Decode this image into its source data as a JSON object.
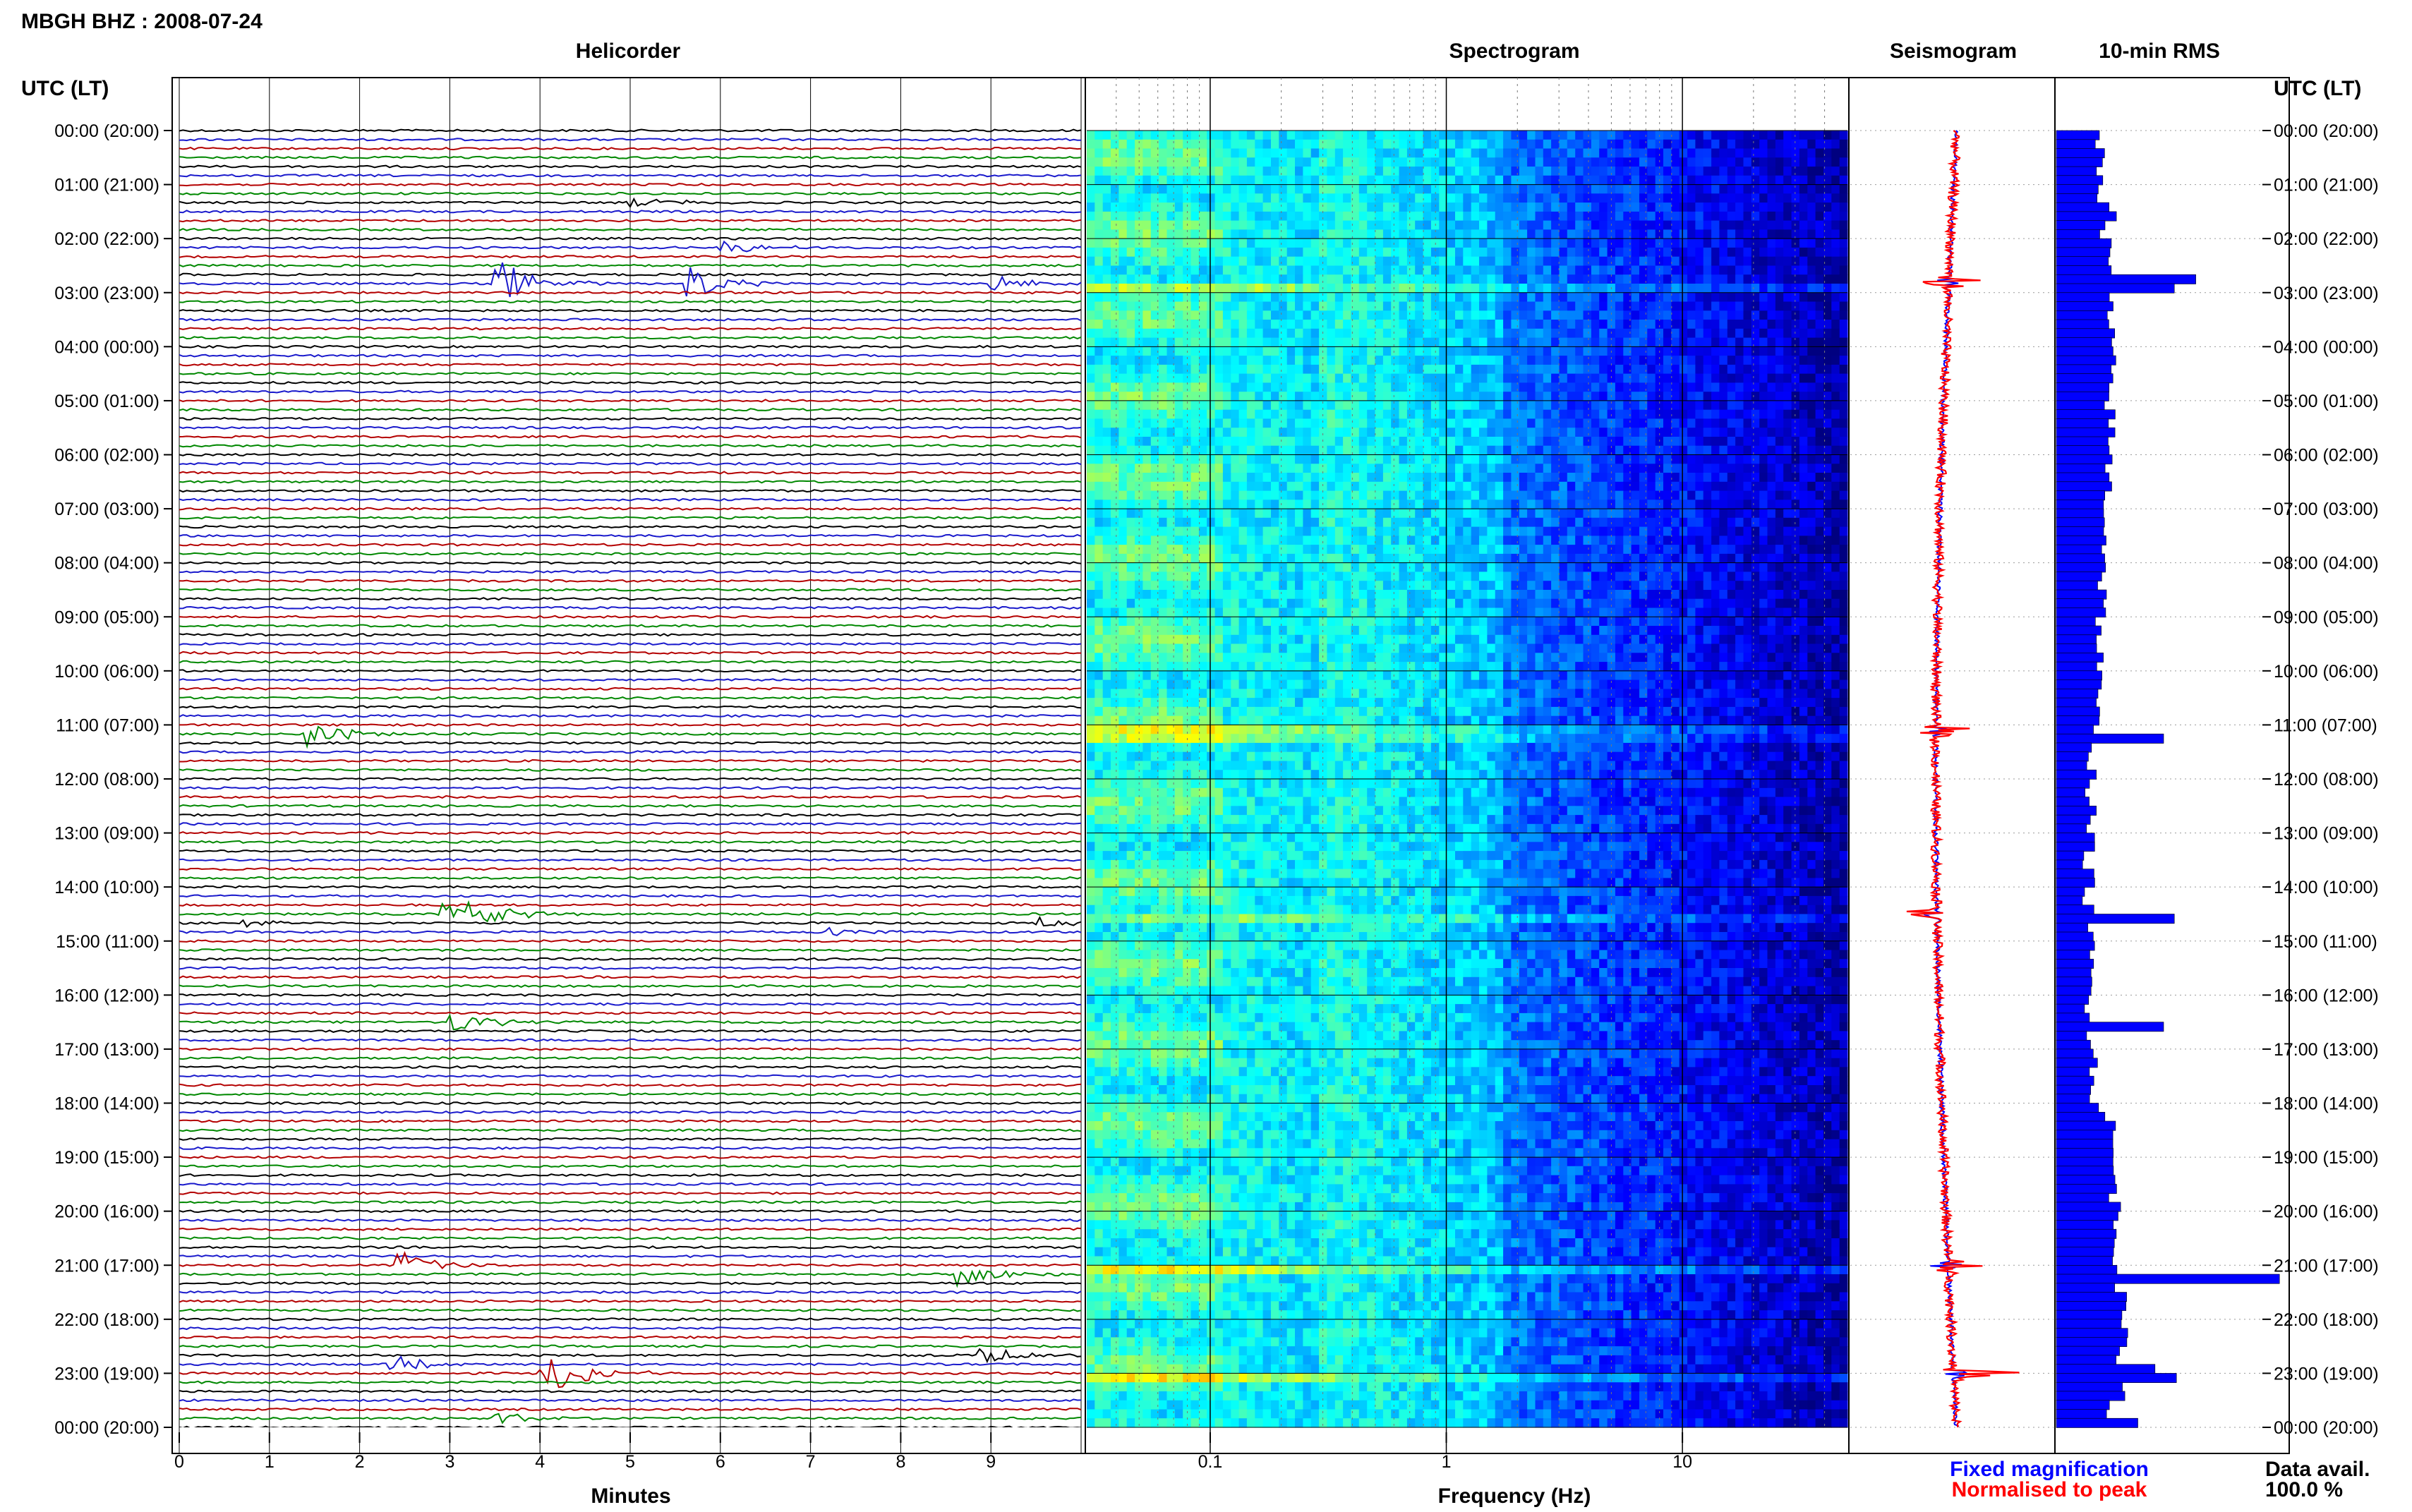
{
  "header": {
    "station_title": "MBGH BHZ : 2008-07-24"
  },
  "panels": {
    "helicorder": "Helicorder",
    "spectrogram": "Spectrogram",
    "seismogram": "Seismogram",
    "rms": "10-min RMS"
  },
  "axis_title_left": "UTC (LT)",
  "axis_title_right": "UTC (LT)",
  "time_labels": [
    "00:00 (20:00)",
    "01:00 (21:00)",
    "02:00 (22:00)",
    "03:00 (23:00)",
    "04:00 (00:00)",
    "05:00 (01:00)",
    "06:00 (02:00)",
    "07:00 (03:00)",
    "08:00 (04:00)",
    "09:00 (05:00)",
    "10:00 (06:00)",
    "11:00 (07:00)",
    "12:00 (08:00)",
    "13:00 (09:00)",
    "14:00 (10:00)",
    "15:00 (11:00)",
    "16:00 (12:00)",
    "17:00 (13:00)",
    "18:00 (14:00)",
    "19:00 (15:00)",
    "20:00 (16:00)",
    "21:00 (17:00)",
    "22:00 (18:00)",
    "23:00 (19:00)",
    "00:00 (20:00)"
  ],
  "helicorder_xlabel": "Minutes",
  "helicorder_xticks": [
    "0",
    "1",
    "2",
    "3",
    "4",
    "5",
    "6",
    "7",
    "8",
    "9"
  ],
  "spectrogram_xlabel": "Frequency (Hz)",
  "spectrogram_xticks": [
    "0.1",
    "1",
    "10"
  ],
  "legend": {
    "fixed": "Fixed magnification",
    "normalised": "Normalised to peak"
  },
  "data_avail": {
    "label": "Data avail.",
    "value": "100.0 %"
  },
  "colors": {
    "trace_cycle": [
      "#000000",
      "#1a1acc",
      "#b40000",
      "#008800"
    ],
    "rms_bar": "#0000ff",
    "seismo_fixed": "#0000ff",
    "seismo_norm": "#ff0000",
    "legend_fixed": "#0000ff",
    "legend_norm": "#ff0000"
  },
  "chart_data": [
    {
      "type": "line",
      "title": "Helicorder",
      "xlabel": "Minutes",
      "xlim": [
        0,
        10
      ],
      "ylabel": "UTC (LT)",
      "traces_per_hour": 6,
      "events": [
        {
          "hour": 2.8,
          "minute": 3.5,
          "amp": 1.0
        },
        {
          "hour": 2.8,
          "minute": 5.6,
          "amp": 0.7
        },
        {
          "hour": 2.8,
          "minute": 9.0,
          "amp": 0.35
        },
        {
          "hour": 2.1,
          "minute": 6.0,
          "amp": 0.3
        },
        {
          "hour": 1.3,
          "minute": 5.0,
          "amp": 0.25
        },
        {
          "hour": 11.1,
          "minute": 1.4,
          "amp": 0.5
        },
        {
          "hour": 14.5,
          "minute": 3.2,
          "amp": 0.6
        },
        {
          "hour": 14.5,
          "minute": 2.9,
          "amp": 0.4
        },
        {
          "hour": 14.7,
          "minute": 0.7,
          "amp": 0.2
        },
        {
          "hour": 14.7,
          "minute": 9.5,
          "amp": 0.2
        },
        {
          "hour": 14.9,
          "minute": 7.2,
          "amp": 0.2
        },
        {
          "hour": 16.5,
          "minute": 3.0,
          "amp": 0.45
        },
        {
          "hour": 21.0,
          "minute": 2.4,
          "amp": 0.6
        },
        {
          "hour": 21.1,
          "minute": 8.6,
          "amp": 0.5
        },
        {
          "hour": 22.6,
          "minute": 8.8,
          "amp": 0.45
        },
        {
          "hour": 22.8,
          "minute": 2.3,
          "amp": 0.35
        },
        {
          "hour": 23.0,
          "minute": 4.0,
          "amp": 0.7
        },
        {
          "hour": 23.0,
          "minute": 4.2,
          "amp": 0.3
        },
        {
          "hour": 23.8,
          "minute": 3.5,
          "amp": 0.25
        }
      ]
    },
    {
      "type": "heatmap",
      "title": "Spectrogram",
      "xlabel": "Frequency (Hz)",
      "xscale": "log",
      "xlim": [
        0.03,
        50
      ],
      "colormap": "jet"
    },
    {
      "type": "line",
      "title": "Seismogram",
      "series": [
        {
          "name": "Fixed magnification"
        },
        {
          "name": "Normalised to peak"
        }
      ],
      "spikes": [
        {
          "hour": 2.8,
          "amp": 0.85
        },
        {
          "hour": 11.1,
          "amp": 0.75
        },
        {
          "hour": 14.5,
          "amp": 0.7
        },
        {
          "hour": 21.0,
          "amp": 1.0
        },
        {
          "hour": 23.0,
          "amp": 1.0
        }
      ]
    },
    {
      "type": "bar",
      "title": "10-min RMS",
      "orientation": "horizontal",
      "bins_per_hour": 6,
      "bins_total": 144,
      "x_max": 1.0,
      "base_level": 0.2,
      "peaks": [
        {
          "hour": 1.5,
          "value": 0.28
        },
        {
          "hour": 2.1,
          "value": 0.25
        },
        {
          "hour": 2.7,
          "value": 0.65
        },
        {
          "hour": 2.85,
          "value": 0.55
        },
        {
          "hour": 11.2,
          "value": 0.5
        },
        {
          "hour": 14.5,
          "value": 0.55
        },
        {
          "hour": 16.5,
          "value": 0.5
        },
        {
          "hour": 21.2,
          "value": 0.98
        },
        {
          "hour": 22.8,
          "value": 0.4
        },
        {
          "hour": 23.0,
          "value": 0.5
        },
        {
          "hour": 23.8,
          "value": 0.38
        }
      ]
    }
  ]
}
